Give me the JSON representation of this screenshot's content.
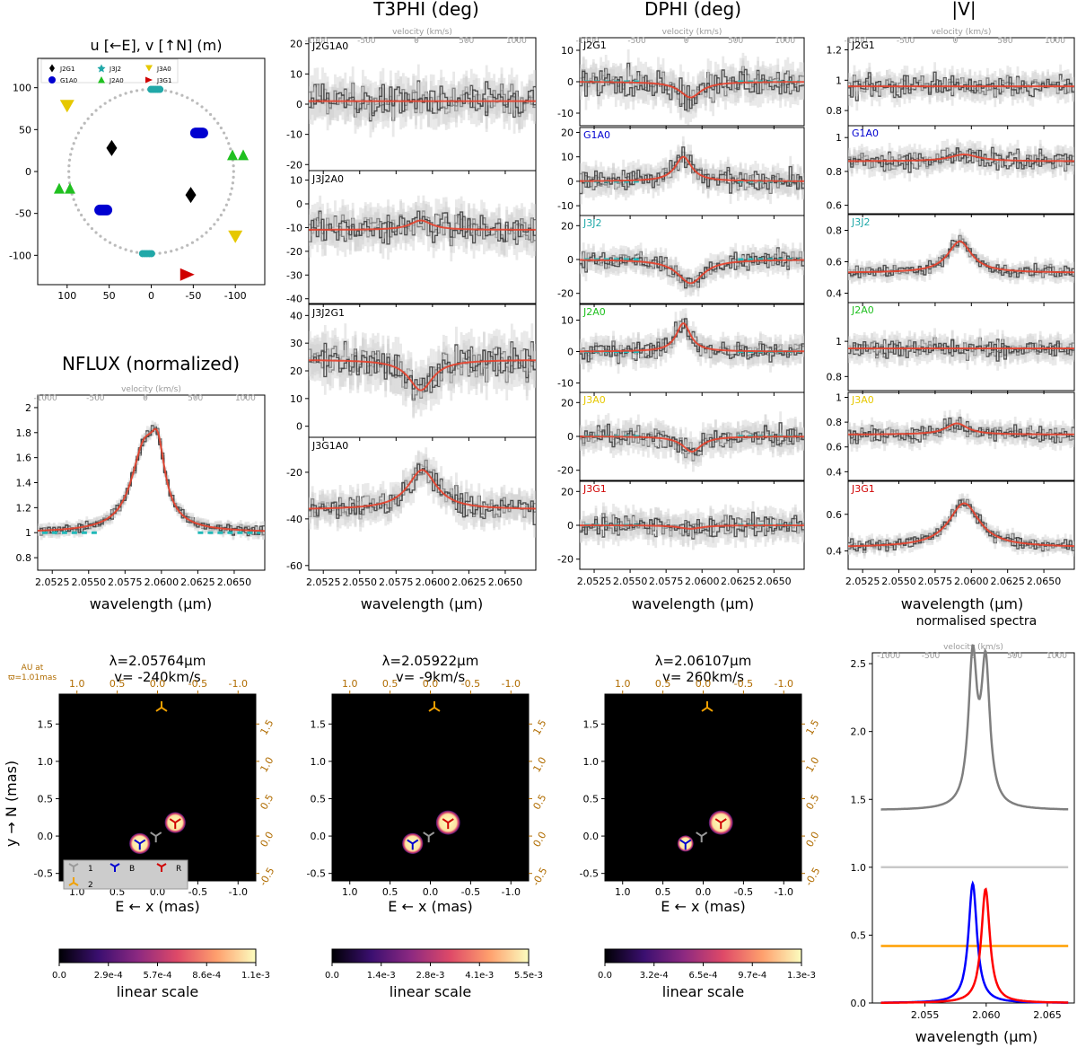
{
  "colors": {
    "obs": "#3a3a3a",
    "err": "#cfcfcf",
    "model": "#e8412c",
    "cont": "#1fb8b8",
    "J2": "#00a000",
    "A0": "#e6c800",
    "G1": "#0000d0",
    "J3": "#d00000",
    "star1": "#9a9a9a",
    "star2": "#f0a000",
    "blob": "#c3442a",
    "axis_orange": "#b06c00",
    "top_axis_gray": "#9a9a9a"
  },
  "column_titles": {
    "t3phi": "T3PHI (deg)",
    "dphi": "DPHI (deg)",
    "v": "|V|"
  },
  "uv_plot": {
    "title": "u [←E], v [↑N] (m)",
    "legend": [
      "J2G1",
      "G1A0",
      "J3J2",
      "J2A0",
      "J3A0",
      "J3G1"
    ],
    "xticks": [
      100,
      50,
      0,
      -50,
      -100
    ],
    "yticks": [
      100,
      50,
      0,
      -50,
      -100
    ],
    "points": [
      {
        "baseline": "J2G1",
        "u": 47,
        "v": 28
      },
      {
        "baseline": "J2G1",
        "u": -47,
        "v": -28
      },
      {
        "baseline": "G1A0",
        "u": -57,
        "v": 46
      },
      {
        "baseline": "G1A0",
        "u": 57,
        "v": -46
      },
      {
        "baseline": "J3J2",
        "u": -5,
        "v": 98
      },
      {
        "baseline": "J3J2",
        "u": 5,
        "v": -98
      },
      {
        "baseline": "J2A0",
        "u": -103,
        "v": 20
      },
      {
        "baseline": "J2A0",
        "u": 103,
        "v": -20
      },
      {
        "baseline": "J3A0",
        "u": 100,
        "v": 78
      },
      {
        "baseline": "J3A0",
        "u": -100,
        "v": -78
      },
      {
        "baseline": "J3G1",
        "u": -43,
        "v": -123
      }
    ],
    "circle_radius": 98
  },
  "nflux": {
    "title": "NFLUX (normalized)",
    "top_axis_label": "velocity (km/s)",
    "velocity_ticks": [
      -1000,
      -500,
      0,
      500,
      1000
    ],
    "yticks": [
      0.8,
      1.0,
      1.2,
      1.4,
      1.6,
      1.8,
      2.0
    ],
    "ylim": [
      0.7,
      2.1
    ],
    "xlabel": "wavelength (μm)"
  },
  "wave_ticks": [
    "2.0525",
    "2.0550",
    "2.0575",
    "2.0600",
    "2.0625",
    "2.0650"
  ],
  "wave_tick_values": [
    2.0525,
    2.055,
    2.0575,
    2.06,
    2.0625,
    2.065
  ],
  "wave_range": [
    2.0515,
    2.0671
  ],
  "t3phi_panels": [
    {
      "label": "J2G1A0",
      "yticks": [
        -20,
        -10,
        0,
        10,
        20
      ],
      "ylim": [
        -22,
        22
      ]
    },
    {
      "label": "J3J2A0",
      "yticks": [
        -40,
        -30,
        -20,
        -10,
        0,
        10
      ],
      "ylim": [
        -42,
        14
      ]
    },
    {
      "label": "J3J2G1",
      "yticks": [
        0,
        10,
        20,
        30,
        40
      ],
      "ylim": [
        -4,
        44
      ]
    },
    {
      "label": "J3G1A0",
      "yticks": [
        -60,
        -40,
        -20
      ],
      "ylim": [
        -62,
        -5
      ]
    }
  ],
  "t3phi_xlabel": "wavelength (μm)",
  "dphi_panels": [
    {
      "label": "J2G1",
      "yticks": [
        -10,
        0,
        10
      ],
      "ylim": [
        -14,
        14
      ]
    },
    {
      "label": "G1A0",
      "yticks": [
        -10,
        0,
        10,
        20
      ],
      "ylim": [
        -14,
        22
      ]
    },
    {
      "label": "J3J2",
      "yticks": [
        -20,
        0,
        20
      ],
      "ylim": [
        -26,
        26
      ]
    },
    {
      "label": "J2A0",
      "yticks": [
        -10,
        0,
        10
      ],
      "ylim": [
        -13,
        15
      ]
    },
    {
      "label": "J3A0",
      "yticks": [
        -20,
        0,
        20
      ],
      "ylim": [
        -26,
        26
      ]
    },
    {
      "label": "J3G1",
      "yticks": [
        -20,
        0,
        20
      ],
      "ylim": [
        -26,
        26
      ]
    }
  ],
  "dphi_xlabel": "wavelength (μm)",
  "v_panels": [
    {
      "label": "J2G1",
      "yticks": [
        0.8,
        1.0,
        1.2
      ],
      "ylim": [
        0.7,
        1.28
      ]
    },
    {
      "label": "G1A0",
      "yticks": [
        0.6,
        0.8,
        1.0
      ],
      "ylim": [
        0.55,
        1.07
      ]
    },
    {
      "label": "J3J2",
      "yticks": [
        0.4,
        0.6,
        0.8
      ],
      "ylim": [
        0.34,
        0.9
      ]
    },
    {
      "label": "J2A0",
      "yticks": [
        0.8,
        1.0
      ],
      "ylim": [
        0.72,
        1.22
      ]
    },
    {
      "label": "J3A0",
      "yticks": [
        0.4,
        0.6,
        0.8,
        1.0
      ],
      "ylim": [
        0.33,
        1.04
      ]
    },
    {
      "label": "J3G1",
      "yticks": [
        0.4,
        0.6
      ],
      "ylim": [
        0.3,
        0.78
      ]
    }
  ],
  "v_xlabel": "wavelength (μm)",
  "images": [
    {
      "lambda": "λ=2.05764μm",
      "velocity": "v= -240km/s",
      "cbar_ticks": [
        "0.0",
        "2.9e-4",
        "5.7e-4",
        "8.6e-4",
        "1.1e-3"
      ],
      "blue_x": 0.22,
      "blue_y": -0.1,
      "blue_r": 0.13,
      "red_x": -0.22,
      "red_y": 0.18,
      "red_r": 0.13
    },
    {
      "lambda": "λ=2.05922μm",
      "velocity": "v= -9km/s",
      "cbar_ticks": [
        "0.0",
        "1.4e-3",
        "2.8e-3",
        "4.1e-3",
        "5.5e-3"
      ],
      "blue_x": 0.22,
      "blue_y": -0.1,
      "blue_r": 0.13,
      "red_x": -0.22,
      "red_y": 0.18,
      "red_r": 0.15
    },
    {
      "lambda": "λ=2.06107μm",
      "velocity": "v= 260km/s",
      "cbar_ticks": [
        "0.0",
        "3.2e-4",
        "6.5e-4",
        "9.7e-4",
        "1.3e-3"
      ],
      "blue_x": 0.22,
      "blue_y": -0.1,
      "blue_r": 0.1,
      "red_x": -0.22,
      "red_y": 0.18,
      "red_r": 0.15
    }
  ],
  "image_axes": {
    "ylabel": "y → N (mas)",
    "xlabel": "E ← x (mas)",
    "cbar_label": "linear scale",
    "au_label_line1": "AU at",
    "au_label_line2": "ϖ=1.01mas",
    "xticks": [
      "1.0",
      "0.5",
      "0.0",
      "-0.5",
      "-1.0"
    ],
    "xtick_values": [
      1.0,
      0.5,
      0.0,
      -0.5,
      -1.0
    ],
    "yticks": [
      "-0.5",
      "0.0",
      "0.5",
      "1.0",
      "1.5"
    ],
    "ytick_values": [
      -0.5,
      0.0,
      0.5,
      1.0,
      1.5
    ],
    "top_ticks": [
      "1.0",
      "0.5",
      "0.0",
      "-0.5",
      "-1.0"
    ],
    "right_ticks": [
      "-0.5",
      "0.0",
      "0.5",
      "1.0",
      "1.5"
    ],
    "star1_x": 0.02,
    "star1_y": 0.0,
    "star2_x": -0.05,
    "star2_y": 1.72,
    "legend": {
      "item1": "1",
      "item2": "2",
      "itemB": "B",
      "itemR": "R"
    }
  },
  "spectra_panel": {
    "title": "normalised spectra",
    "top_axis_label": "velocity (km/s)",
    "velocity_ticks": [
      -1000,
      -500,
      0,
      500,
      1000
    ],
    "yticks": [
      "0.0",
      "0.5",
      "1.0",
      "1.5",
      "2.0",
      "2.5"
    ],
    "ytick_values": [
      0,
      0.5,
      1.0,
      1.5,
      2.0,
      2.5
    ],
    "ylim": [
      0,
      2.58
    ],
    "xticks": [
      "2.055",
      "2.060",
      "2.065"
    ],
    "xtick_values": [
      2.055,
      2.06,
      2.065
    ],
    "xrange": [
      2.0507,
      2.0672
    ],
    "xlabel": "wavelength (μm)",
    "total_continuum": 1.42,
    "star1_level": 1.0,
    "star2_level": 0.42,
    "blue_center": 2.0589,
    "blue_peak": 0.88,
    "red_center": 2.05995,
    "red_peak": 0.84
  }
}
